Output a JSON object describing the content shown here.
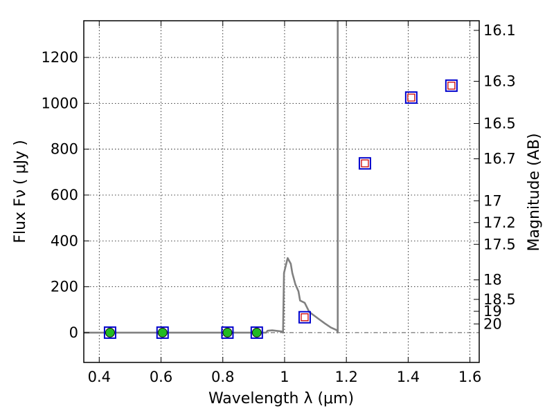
{
  "chart_data": {
    "type": "scatter",
    "xlabel": "Wavelength  λ (μm)",
    "ylabel": "Flux  Fν  ( μJy )",
    "ylabel_right": "Magnitude (AB)",
    "xlim": [
      0.35,
      1.63
    ],
    "ylim": [
      -130,
      1360
    ],
    "grid": true,
    "x_ticks": [
      0.4,
      0.6,
      0.8,
      1.0,
      1.2,
      1.4,
      1.6
    ],
    "x_tick_labels": [
      "0.4",
      "0.6",
      "0.8",
      "1",
      "1.2",
      "1.4",
      "1.6"
    ],
    "y_ticks": [
      0,
      200,
      400,
      600,
      800,
      1000,
      1200
    ],
    "y_tick_labels": [
      "0",
      "200",
      "400",
      "600",
      "800",
      "1000",
      "1200"
    ],
    "right_ticks": [
      {
        "flux": 1318,
        "label": "16.1"
      },
      {
        "flux": 1096,
        "label": "16.3"
      },
      {
        "flux": 912,
        "label": "16.5"
      },
      {
        "flux": 758,
        "label": "16.7"
      },
      {
        "flux": 575,
        "label": "17"
      },
      {
        "flux": 480,
        "label": "17.2"
      },
      {
        "flux": 385,
        "label": "17.5"
      },
      {
        "flux": 230,
        "label": "18"
      },
      {
        "flux": 145,
        "label": "18.5"
      },
      {
        "flux": 93,
        "label": "19"
      },
      {
        "flux": 38,
        "label": "20"
      }
    ],
    "series": [
      {
        "type": "line",
        "color": "#808080",
        "x": [
          0.35,
          0.94,
          0.945,
          0.96,
          0.99,
          0.995,
          0.998,
          1.01,
          1.02,
          1.025,
          1.035,
          1.045,
          1.05,
          1.065,
          1.08,
          1.095,
          1.11,
          1.13,
          1.15,
          1.17,
          1.172,
          1.172
        ],
        "y": [
          0,
          0,
          8,
          10,
          5,
          0,
          260,
          325,
          300,
          260,
          210,
          180,
          140,
          130,
          90,
          75,
          60,
          40,
          22,
          10,
          0,
          1360
        ]
      },
      {
        "type": "scatter",
        "marker": "square-open",
        "color": "#0000cc",
        "x": [
          0.435,
          0.605,
          0.815,
          0.91,
          1.065,
          1.26,
          1.41,
          1.54
        ],
        "y": [
          0,
          0,
          0,
          0,
          67,
          738,
          1025,
          1077
        ]
      },
      {
        "type": "scatter",
        "marker": "circle-filled",
        "color": "#22bb22",
        "x": [
          0.435,
          0.605,
          0.815,
          0.91
        ],
        "y": [
          0,
          0,
          0,
          0
        ]
      },
      {
        "type": "scatter",
        "marker": "square-open",
        "color": "#cc0000",
        "x": [
          1.065,
          1.26,
          1.41,
          1.54
        ],
        "y": [
          67,
          738,
          1025,
          1077
        ]
      }
    ],
    "zero_line": {
      "color": "#555555",
      "style": "dashdot"
    }
  }
}
